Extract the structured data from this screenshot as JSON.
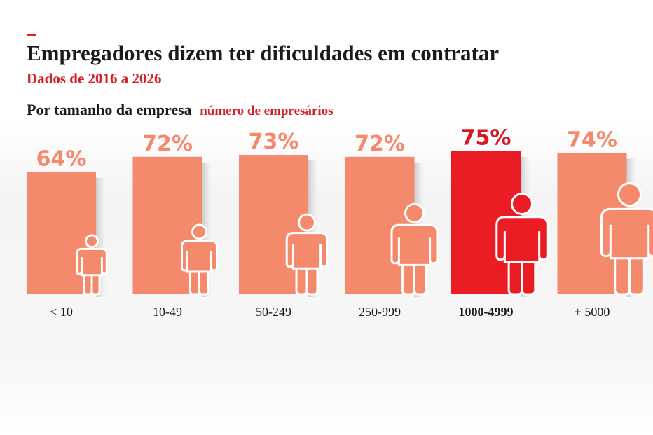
{
  "chart_data": {
    "type": "bar",
    "title": "Empregadores dizem ter dificuldades em contratar",
    "subtitle": "Dados de 2016 a 2026",
    "section_label": "Por tamanho da empresa",
    "legend_label": "número de empresários",
    "categories": [
      "< 10",
      "10-49",
      "50-249",
      "250-999",
      "1000-4999",
      "+ 5000"
    ],
    "values": [
      64,
      72,
      73,
      72,
      75,
      74
    ],
    "value_labels": [
      "64%",
      "72%",
      "73%",
      "72%",
      "75%",
      "74%"
    ],
    "color": "#f4896c",
    "highlight_color": "#ec1c24",
    "highlight_index": 4,
    "ylim": [
      0,
      80
    ]
  }
}
